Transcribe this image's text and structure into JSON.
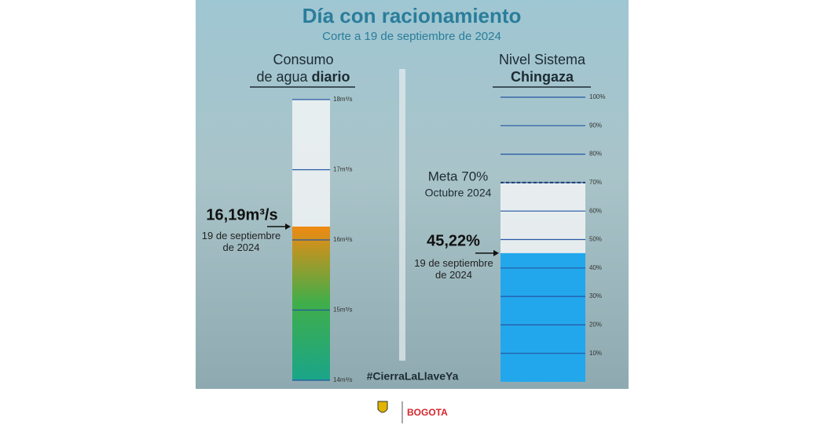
{
  "header": {
    "title": "Día con racionamiento",
    "subtitle": "Corte a 19 de septiembre de 2024"
  },
  "chart_data": [
    {
      "type": "bar",
      "title": {
        "line1": "Consumo",
        "line2": "de agua",
        "line2_bold": "diario"
      },
      "values": [
        16.19
      ],
      "value_labels": [
        "16,19m³/s"
      ],
      "annotation": "19 de septiembre de 2024",
      "ylim": [
        14,
        18
      ],
      "yticks": [
        {
          "value": 14,
          "label": "14m³/s"
        },
        {
          "value": 15,
          "label": "15m³/s"
        },
        {
          "value": 16,
          "label": "16m³/s"
        },
        {
          "value": 17,
          "label": "17m³/s"
        },
        {
          "value": 18,
          "label": "18m³/s"
        }
      ],
      "colors": [
        "#1aa58a",
        "#3fae4a",
        "#f08a12"
      ]
    },
    {
      "type": "bar",
      "title": {
        "line1": "Nivel Sistema",
        "line2_bold": "Chingaza"
      },
      "values": [
        45.22
      ],
      "value_labels": [
        "45,22%"
      ],
      "annotation": "19 de septiembre de 2024",
      "target": {
        "value": 70,
        "label": "Meta 70%",
        "sublabel": "Octubre 2024"
      },
      "ylim": [
        0,
        100
      ],
      "yticks": [
        {
          "value": 10,
          "label": "10%"
        },
        {
          "value": 20,
          "label": "20%"
        },
        {
          "value": 30,
          "label": "30%"
        },
        {
          "value": 40,
          "label": "40%"
        },
        {
          "value": 50,
          "label": "50%"
        },
        {
          "value": 60,
          "label": "60%"
        },
        {
          "value": 70,
          "label": "70%"
        },
        {
          "value": 80,
          "label": "80%"
        },
        {
          "value": 90,
          "label": "90%"
        },
        {
          "value": 100,
          "label": "100%"
        }
      ],
      "colors": [
        "#23a7ec"
      ]
    }
  ],
  "hashtag": "#CierraLaLlaveYa",
  "footer": {
    "brand": "BOGOTA"
  }
}
